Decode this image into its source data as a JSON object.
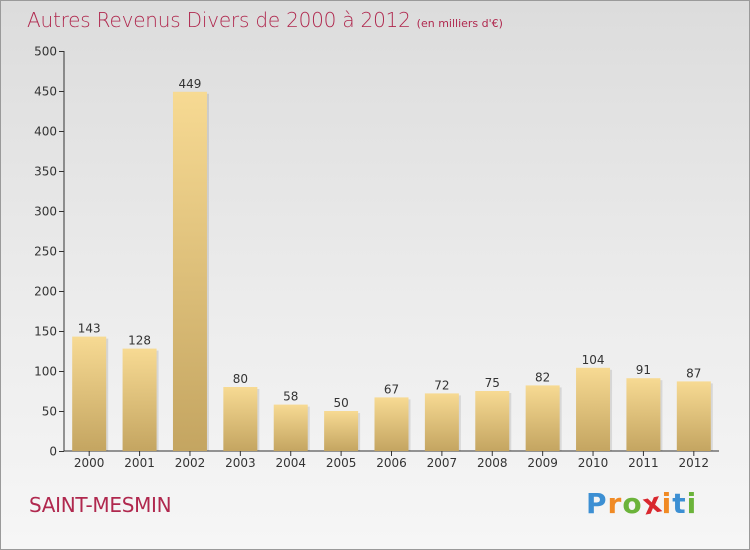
{
  "chart_data": {
    "type": "bar",
    "title": "Autres Revenus Divers de 2000 à 2012",
    "subtitle": "(en milliers d'€)",
    "categories": [
      "2000",
      "2001",
      "2002",
      "2003",
      "2004",
      "2005",
      "2006",
      "2007",
      "2008",
      "2009",
      "2010",
      "2011",
      "2012"
    ],
    "values": [
      143,
      128,
      449,
      80,
      58,
      50,
      67,
      72,
      75,
      82,
      104,
      91,
      87
    ],
    "data_labels": [
      "143",
      "128",
      "449",
      "80",
      "58",
      "50",
      "67",
      "72",
      "75",
      "82",
      "104",
      "91",
      "87"
    ],
    "ylim": [
      0,
      500
    ],
    "yticks": [
      "0",
      "50",
      "100",
      "150",
      "200",
      "250",
      "300",
      "350",
      "400",
      "450",
      "500"
    ],
    "grid": false,
    "colors": {
      "bar_top": "#f7da93",
      "bar_bottom": "#c4a561",
      "axis": "#333333",
      "title": "#b0284e"
    }
  },
  "location": "SAINT-MESMIN",
  "logo": {
    "letters": [
      "P",
      "r",
      "o",
      "x",
      "i",
      "t",
      "i"
    ],
    "colors": [
      "#3c8fd3",
      "#f08a24",
      "#6bb33a",
      "#d9272e",
      "#f08a24",
      "#3c8fd3",
      "#6bb33a"
    ]
  }
}
